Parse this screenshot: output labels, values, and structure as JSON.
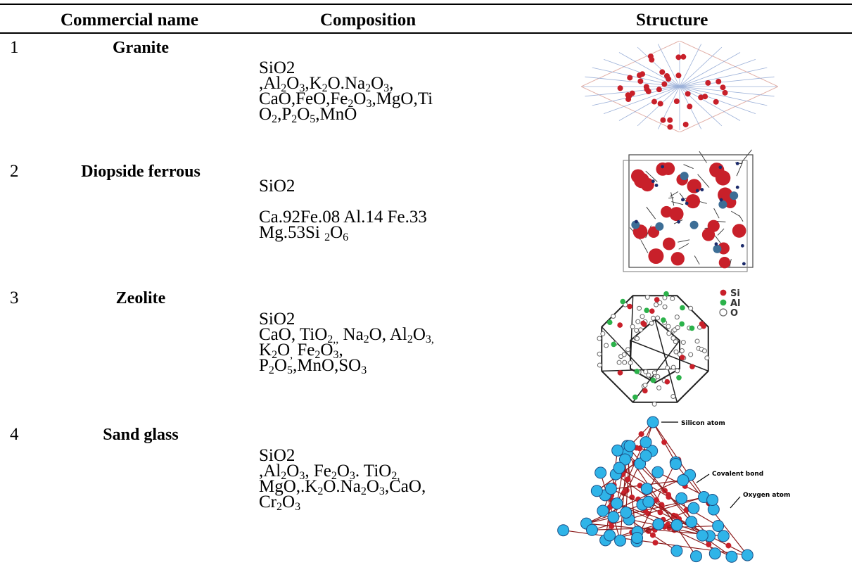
{
  "table": {
    "headers": {
      "name": "Commercial name",
      "composition": "Composition",
      "structure": "Structure"
    },
    "rows": [
      {
        "num": "1",
        "name": "Granite",
        "composition": [
          "SiO2",
          ",Al<sub>2</sub>O<sub>3</sub>,K<sub>2</sub>O.Na<sub>2</sub>O<sub>3</sub>,",
          "CaO,FeO,Fe<sub>2</sub>O<sub>3</sub>,MgO,Ti",
          "O<sub>2</sub>,P<sub>2</sub>O<sub>5</sub>,MnO"
        ]
      },
      {
        "num": "2",
        "name": "Diopside  ferrous",
        "composition": [
          "SiO2",
          "",
          "Ca.92Fe.08 Al.14 Fe.33",
          "Mg.53Si <sub>2</sub>O<sub>6</sub>"
        ]
      },
      {
        "num": "3",
        "name": "Zeolite",
        "composition": [
          "SiO2",
          "CaO, TiO<sub>2,,</sub> Na<sub>2</sub>O, Al<sub>2</sub>O<sub>3,</sub>",
          "K<sub>2</sub>O<sub>,</sub> Fe<sub>2</sub>O<sub>3</sub>,",
          "P<sub>2</sub>O<sub>5</sub>,MnO,SO<sub>3</sub>"
        ]
      },
      {
        "num": "4",
        "name": "Sand  glass",
        "composition": [
          "SiO2",
          ",Al<sub>2</sub>O<sub>3</sub>, Fe<sub>2</sub>O<sub>3</sub>. TiO<sub>2,</sub>",
          "MgO,.K<sub>2</sub>O.Na<sub>2</sub>O<sub>3</sub>,CaO,",
          "Cr<sub>2</sub>O<sub>3</sub>"
        ]
      }
    ]
  },
  "structure_labels": {
    "zeolite": [
      "Si",
      "Al",
      "O"
    ],
    "sand_glass": [
      "Silicon atom",
      "Covalent bond",
      "Oxygen atom"
    ]
  },
  "colors": {
    "oxygen_red": "#c8202a",
    "silicon_blue": "#2fb4e8",
    "aluminium_green": "#2bb24a",
    "grey_atom": "#c8c8c8",
    "dark_blue": "#1b4f86"
  }
}
